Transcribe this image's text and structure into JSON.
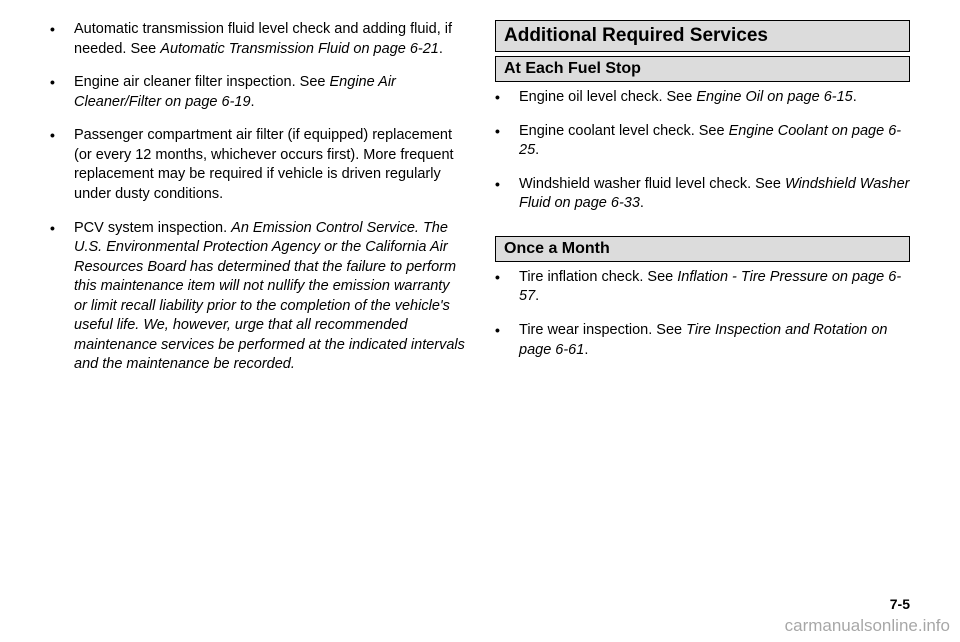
{
  "left": {
    "items": [
      {
        "plain1": "Automatic transmission fluid level check and adding fluid, if needed. See ",
        "italic1": "Automatic Transmission Fluid on page 6-21",
        "plain2": "."
      },
      {
        "plain1": "Engine air cleaner filter inspection. See ",
        "italic1": "Engine Air Cleaner/Filter on page 6-19",
        "plain2": "."
      },
      {
        "plain1": "Passenger compartment air filter (if equipped) replacement (or every 12 months, whichever occurs first). More frequent replacement may be required if vehicle is driven regularly under dusty conditions.",
        "italic1": "",
        "plain2": ""
      },
      {
        "plain1": "PCV system inspection. ",
        "italic1": "An Emission Control Service. The U.S. Environmental Protection Agency or the California Air Resources Board has determined that the failure to perform this maintenance item will not nullify the emission warranty or limit recall liability prior to the completion of the vehicle's useful life. We, however, urge that all recommended maintenance services be performed at the indicated intervals and the maintenance be recorded.",
        "plain2": ""
      }
    ]
  },
  "right": {
    "header1": "Additional Required Services",
    "sub1": "At Each Fuel Stop",
    "fuel": [
      {
        "plain1": "Engine oil level check. See ",
        "italic1": "Engine Oil on page 6-15",
        "plain2": "."
      },
      {
        "plain1": "Engine coolant level check. See ",
        "italic1": "Engine Coolant on page 6-25",
        "plain2": "."
      },
      {
        "plain1": "Windshield washer fluid level check. See ",
        "italic1": "Windshield Washer Fluid on page 6-33",
        "plain2": "."
      }
    ],
    "sub2": "Once a Month",
    "month": [
      {
        "plain1": "Tire inflation check. See ",
        "italic1": "Inflation - Tire Pressure on page 6-57",
        "plain2": "."
      },
      {
        "plain1": "Tire wear inspection. See ",
        "italic1": "Tire Inspection and Rotation on page 6-61",
        "plain2": "."
      }
    ]
  },
  "pageNum": "7-5",
  "watermark": "carmanualsonline.info"
}
